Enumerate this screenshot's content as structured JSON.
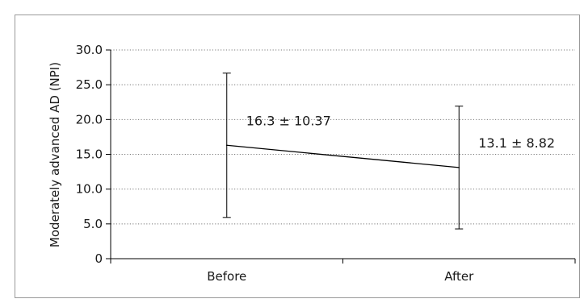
{
  "chart_data": {
    "type": "line",
    "title": "",
    "xlabel": "",
    "ylabel": "Moderately advanced AD (NPI)",
    "categories": [
      "Before",
      "After"
    ],
    "series": [
      {
        "values": [
          16.3,
          13.1
        ],
        "error": [
          10.37,
          8.82
        ],
        "labels": [
          "16.3 ± 10.37",
          "13.1 ± 8.82"
        ]
      }
    ],
    "yticks": [
      "0",
      "5.0",
      "10.0",
      "15.0",
      "20.0",
      "25.0",
      "30.0"
    ],
    "ylim": [
      0,
      30
    ],
    "grid": true,
    "legend": "none"
  }
}
